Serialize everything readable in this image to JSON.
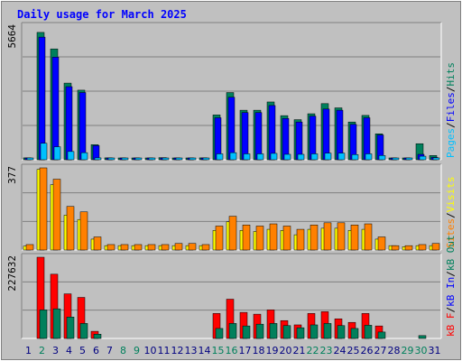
{
  "chart_data": [
    {
      "type": "bar",
      "title": "Daily usage for March 2025",
      "categories": [
        "1",
        "2",
        "3",
        "4",
        "5",
        "6",
        "7",
        "8",
        "9",
        "10",
        "11",
        "12",
        "13",
        "14",
        "15",
        "16",
        "17",
        "18",
        "19",
        "20",
        "21",
        "22",
        "23",
        "24",
        "25",
        "26",
        "27",
        "28",
        "29",
        "30",
        "31"
      ],
      "weekend_days": [
        "2",
        "8",
        "9",
        "15",
        "16",
        "22",
        "23",
        "29",
        "30"
      ],
      "ylabel_max": "5664",
      "right_labels": [
        "Pages",
        "Files",
        "Hits"
      ],
      "ylim": [
        0,
        5664
      ],
      "series": [
        {
          "name": "Hits",
          "color": "#00805c",
          "values": [
            80,
            5400,
            4700,
            3250,
            2950,
            640,
            80,
            70,
            70,
            70,
            90,
            70,
            70,
            80,
            1900,
            2850,
            2100,
            2100,
            2450,
            1870,
            1700,
            1950,
            2380,
            2200,
            1600,
            1880,
            1100,
            60,
            60,
            680,
            180
          ]
        },
        {
          "name": "Files",
          "color": "#0000ff",
          "values": [
            60,
            5200,
            4350,
            3100,
            2850,
            600,
            70,
            60,
            60,
            60,
            80,
            60,
            60,
            70,
            1780,
            2650,
            2000,
            2000,
            2300,
            1750,
            1600,
            1850,
            2150,
            2100,
            1500,
            1780,
            1050,
            40,
            40,
            230,
            100
          ]
        },
        {
          "name": "Pages",
          "color": "#00c0ff",
          "values": [
            20,
            700,
            550,
            350,
            300,
            80,
            20,
            20,
            20,
            20,
            30,
            20,
            20,
            20,
            250,
            300,
            250,
            250,
            270,
            230,
            230,
            250,
            280,
            280,
            220,
            250,
            180,
            20,
            20,
            150,
            80
          ]
        }
      ]
    },
    {
      "type": "bar",
      "ylabel_max": "377",
      "right_labels": [
        "Sites",
        "Visits"
      ],
      "ylim": [
        0,
        377
      ],
      "series": [
        {
          "name": "Visits",
          "color": "#ffff00",
          "values": [
            18,
            370,
            300,
            160,
            140,
            50,
            20,
            20,
            20,
            20,
            20,
            20,
            20,
            20,
            90,
            130,
            90,
            85,
            95,
            90,
            70,
            95,
            100,
            100,
            90,
            95,
            50,
            20,
            15,
            20,
            20
          ]
        },
        {
          "name": "Sites",
          "color": "#ff8000",
          "values": [
            25,
            377,
            325,
            200,
            175,
            60,
            25,
            25,
            25,
            25,
            25,
            30,
            30,
            25,
            110,
            155,
            115,
            110,
            120,
            110,
            95,
            115,
            125,
            125,
            115,
            120,
            60,
            20,
            20,
            25,
            30
          ]
        }
      ]
    },
    {
      "type": "bar",
      "ylabel_max": "227632",
      "right_labels": [
        "kB F",
        "kB In",
        "kB Out"
      ],
      "ylim": [
        0,
        227632
      ],
      "series": [
        {
          "name": "kB F",
          "color": "#ff0000",
          "values": [
            0,
            227632,
            180000,
            125000,
            115000,
            20000,
            0,
            0,
            0,
            0,
            0,
            0,
            0,
            0,
            70000,
            110000,
            73000,
            68000,
            80000,
            50000,
            38000,
            70000,
            75000,
            55000,
            45000,
            70000,
            35000,
            0,
            0,
            0,
            0
          ]
        },
        {
          "name": "kB Out",
          "color": "#00805c",
          "values": [
            0,
            80000,
            83000,
            60000,
            42000,
            12000,
            0,
            0,
            0,
            0,
            0,
            0,
            0,
            0,
            28000,
            42000,
            35000,
            40000,
            42000,
            36000,
            30000,
            38000,
            42000,
            36000,
            28000,
            37000,
            18000,
            0,
            0,
            8000,
            0
          ]
        },
        {
          "name": "kB In",
          "color": "#0000ff",
          "values": [
            0,
            0,
            0,
            0,
            0,
            0,
            0,
            0,
            0,
            0,
            0,
            0,
            0,
            0,
            0,
            0,
            0,
            0,
            0,
            0,
            0,
            0,
            0,
            0,
            0,
            0,
            0,
            0,
            0,
            0,
            0
          ]
        }
      ]
    }
  ],
  "colors": {
    "background": "#c0c0c0",
    "title": "#0000ff",
    "weekday_label": "#000080",
    "weekend_label": "#00805c",
    "grid": "#808080"
  }
}
